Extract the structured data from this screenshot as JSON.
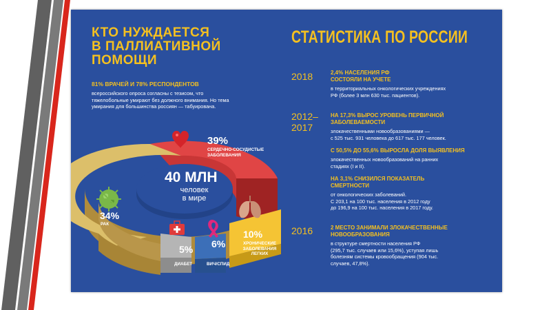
{
  "left": {
    "title_lines": [
      "КТО НУЖДАЕТСЯ",
      "В ПАЛЛИАТИВНОЙ",
      "ПОМОЩИ"
    ],
    "subtitle": "81% ВРАЧЕЙ И 78% РЕСПОНДЕНТОВ",
    "text_lines": [
      "всероссийского опроса  согласны с тезисом, что",
      "тяжелобольные умирают без должного внимания. Но тема",
      "умирания для большинства россиян — табуирована."
    ]
  },
  "donut": {
    "center_value": "40 МЛН",
    "center_label_lines": [
      "человек",
      "в мире"
    ],
    "segments": [
      {
        "percent_label": "39%",
        "caption_lines": [
          "СЕРДЕЧНО-СОСУДИСТЫЕ",
          "ЗАБОЛЕВАНИЯ"
        ],
        "value": 39,
        "color": "#d94040",
        "icon": "heart-icon"
      },
      {
        "percent_label": "10%",
        "caption_lines": [
          "ХРОНИЧЕСКИЕ",
          "ЗАБОЛЕВАНИЯ",
          "ЛЕГКИХ"
        ],
        "value": 10,
        "color": "#f5c434",
        "icon": "lungs-icon"
      },
      {
        "percent_label": "6%",
        "caption_lines": [
          "ВИЧ/СПИД"
        ],
        "value": 6,
        "color": "#3c6fb8",
        "icon": "ribbon-icon"
      },
      {
        "percent_label": "5%",
        "caption_lines": [
          "ДИАБЕТ"
        ],
        "value": 5,
        "color": "#b7b7b7",
        "icon": "first-aid-kit-icon"
      },
      {
        "percent_label": "34%",
        "caption_lines": [
          "РАК"
        ],
        "value": 34,
        "color": "#dcc06a",
        "icon": "virus-icon"
      }
    ]
  },
  "right": {
    "title": "СТАТИСТИКА ПО РОССИИ",
    "sections": [
      {
        "year": "2018",
        "head_lines": [
          "2,4% НАСЕЛЕНИЯ РФ",
          "СОСТОЯЛИ НА УЧЕТЕ"
        ],
        "text_lines": [
          "в территориальных онкологических учреждениях",
          "РФ (более 3 млн 630 тыс. пациентов)."
        ]
      },
      {
        "year_lines": [
          "2012–",
          "2017"
        ],
        "head_lines": [
          "НА 17,3% ВЫРОС УРОВЕНЬ ПЕРВИЧНОЙ",
          "ЗАБОЛЕВАЕМОСТИ"
        ],
        "text_lines": [
          "злокачественными новообразованиями —",
          "с 525 тыс. 931 человека  до 617 тыс. 177 человек."
        ]
      },
      {
        "head_lines": [
          "С 50,5% ДО 55,6% ВЫРОСЛА ДОЛЯ ВЫЯВЛЕНИЯ"
        ],
        "text_lines": [
          "злокачественных новообразований на ранних",
          "стадиях (I и II)."
        ]
      },
      {
        "head_lines": [
          "НА 3,1% СНИЗИЛСЯ ПОКАЗАТЕЛЬ",
          "СМЕРТНОСТИ"
        ],
        "text_lines": [
          "от онкологических заболеваний.",
          "С 203,1 на 100 тыс. населения в 2012 году",
          "до 196,9 на 100 тыс. населения в 2017 году."
        ]
      },
      {
        "year": "2016",
        "head_lines": [
          "2 МЕСТО ЗАНИМАЛИ ЗЛОКАЧЕСТВЕННЫЕ",
          "НОВООБРАЗОВАНИЯ"
        ],
        "text_lines": [
          "в структуре смертности населения РФ",
          "(295,7 тыс. случаев или 15,6%), уступая лишь",
          "болезням системы кровообращения (904 тыс.",
          "случаев, 47,8%)."
        ]
      }
    ]
  },
  "colors": {
    "background": "#2a4f9e",
    "accent": "#f4c020",
    "stripe_dark": "#5a5a5a",
    "stripe_red": "#d9261c"
  }
}
